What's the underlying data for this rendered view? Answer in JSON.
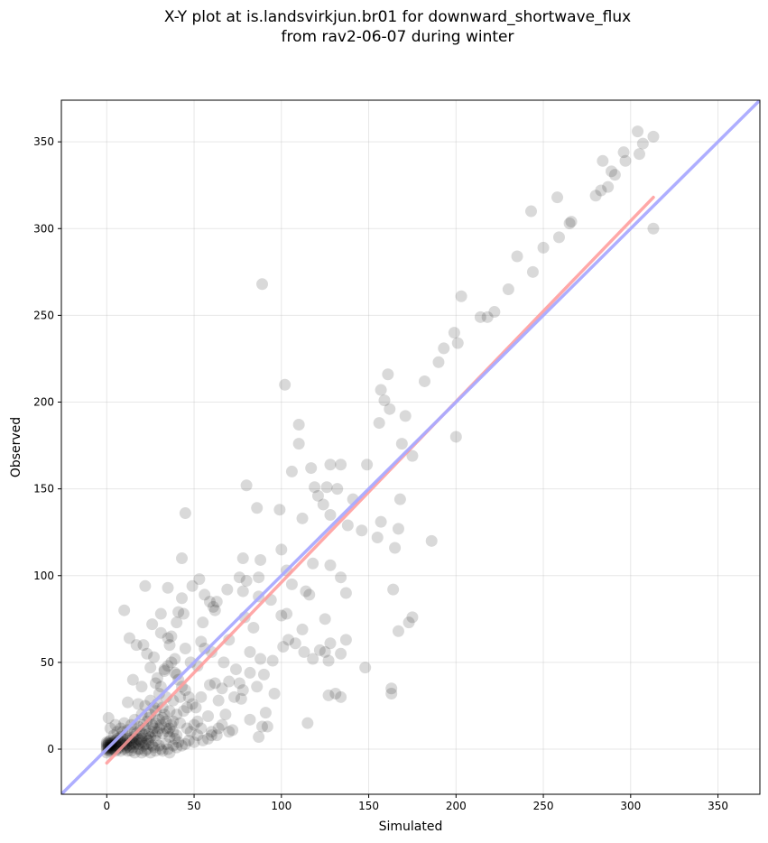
{
  "title": {
    "line1": "X-Y plot at is.landsvirkjun.br01 for downward_shortwave_flux",
    "line2": "from rav2-06-07 during winter"
  },
  "chart_data": {
    "type": "scatter",
    "xlabel": "Simulated",
    "ylabel": "Observed",
    "xlim": [
      -26,
      374
    ],
    "ylim": [
      -26,
      374
    ],
    "xticks": [
      0,
      50,
      100,
      150,
      200,
      250,
      300,
      350
    ],
    "yticks": [
      0,
      50,
      100,
      150,
      200,
      250,
      300,
      350
    ],
    "grid": true,
    "colors": {
      "points": "#000000",
      "identity_line": "#aaaaff",
      "fit_line": "#ff9999"
    },
    "identity_line": {
      "x": [
        -26,
        374
      ],
      "y": [
        -26,
        374
      ]
    },
    "fit_line": {
      "x": [
        0,
        313
      ],
      "y": [
        -8,
        318
      ]
    },
    "points": [
      [
        304,
        356
      ],
      [
        313,
        353
      ],
      [
        307,
        349
      ],
      [
        296,
        344
      ],
      [
        305,
        343
      ],
      [
        284,
        339
      ],
      [
        297,
        339
      ],
      [
        289,
        333
      ],
      [
        291,
        331
      ],
      [
        287,
        324
      ],
      [
        283,
        322
      ],
      [
        280,
        319
      ],
      [
        258,
        318
      ],
      [
        243,
        310
      ],
      [
        266,
        304
      ],
      [
        265,
        303
      ],
      [
        313,
        300
      ],
      [
        259,
        295
      ],
      [
        250,
        289
      ],
      [
        235,
        284
      ],
      [
        244,
        275
      ],
      [
        230,
        265
      ],
      [
        89,
        268
      ],
      [
        203,
        261
      ],
      [
        222,
        252
      ],
      [
        218,
        249
      ],
      [
        214,
        249
      ],
      [
        199,
        240
      ],
      [
        201,
        234
      ],
      [
        193,
        231
      ],
      [
        190,
        223
      ],
      [
        182,
        212
      ],
      [
        102,
        210
      ],
      [
        161,
        216
      ],
      [
        157,
        207
      ],
      [
        159,
        201
      ],
      [
        162,
        196
      ],
      [
        171,
        192
      ],
      [
        156,
        188
      ],
      [
        110,
        187
      ],
      [
        200,
        180
      ],
      [
        110,
        176
      ],
      [
        169,
        176
      ],
      [
        175,
        169
      ],
      [
        117,
        162
      ],
      [
        106,
        160
      ],
      [
        128,
        164
      ],
      [
        134,
        164
      ],
      [
        149,
        164
      ],
      [
        80,
        152
      ],
      [
        119,
        151
      ],
      [
        126,
        151
      ],
      [
        132,
        150
      ],
      [
        121,
        146
      ],
      [
        141,
        144
      ],
      [
        168,
        144
      ],
      [
        124,
        141
      ],
      [
        99,
        138
      ],
      [
        86,
        139
      ],
      [
        112,
        133
      ],
      [
        128,
        135
      ],
      [
        138,
        129
      ],
      [
        157,
        131
      ],
      [
        45,
        136
      ],
      [
        155,
        122
      ],
      [
        167,
        127
      ],
      [
        146,
        126
      ],
      [
        186,
        120
      ],
      [
        165,
        116
      ],
      [
        100,
        115
      ],
      [
        78,
        110
      ],
      [
        88,
        109
      ],
      [
        43,
        110
      ],
      [
        118,
        107
      ],
      [
        128,
        106
      ],
      [
        103,
        103
      ],
      [
        87,
        99
      ],
      [
        76,
        99
      ],
      [
        134,
        99
      ],
      [
        53,
        98
      ],
      [
        80,
        97
      ],
      [
        49,
        94
      ],
      [
        22,
        94
      ],
      [
        35,
        93
      ],
      [
        106,
        95
      ],
      [
        69,
        92
      ],
      [
        114,
        91
      ],
      [
        78,
        91
      ],
      [
        116,
        89
      ],
      [
        137,
        90
      ],
      [
        56,
        89
      ],
      [
        87,
        88
      ],
      [
        59,
        85
      ],
      [
        94,
        86
      ],
      [
        63,
        85
      ],
      [
        43,
        87
      ],
      [
        61,
        82
      ],
      [
        41,
        79
      ],
      [
        62,
        80
      ],
      [
        10,
        80
      ],
      [
        31,
        78
      ],
      [
        103,
        78
      ],
      [
        100,
        77
      ],
      [
        44,
        78
      ],
      [
        79,
        76
      ],
      [
        164,
        92
      ],
      [
        175,
        76
      ],
      [
        173,
        73
      ],
      [
        125,
        75
      ],
      [
        167,
        68
      ],
      [
        112,
        69
      ],
      [
        84,
        70
      ],
      [
        55,
        73
      ],
      [
        40,
        73
      ],
      [
        26,
        72
      ],
      [
        31,
        67
      ],
      [
        37,
        65
      ],
      [
        35,
        64
      ],
      [
        13,
        64
      ],
      [
        54,
        62
      ],
      [
        70,
        63
      ],
      [
        104,
        63
      ],
      [
        108,
        61
      ],
      [
        128,
        61
      ],
      [
        137,
        63
      ],
      [
        101,
        59
      ],
      [
        21,
        60
      ],
      [
        17,
        60
      ],
      [
        36,
        60
      ],
      [
        45,
        58
      ],
      [
        56,
        58
      ],
      [
        60,
        56
      ],
      [
        82,
        56
      ],
      [
        113,
        56
      ],
      [
        122,
        57
      ],
      [
        125,
        56
      ],
      [
        134,
        55
      ],
      [
        88,
        52
      ],
      [
        95,
        51
      ],
      [
        127,
        51
      ],
      [
        23,
        55
      ],
      [
        27,
        53
      ],
      [
        39,
        52
      ],
      [
        48,
        50
      ],
      [
        67,
        50
      ],
      [
        118,
        52
      ],
      [
        148,
        47
      ],
      [
        52,
        48
      ],
      [
        25,
        47
      ],
      [
        33,
        45
      ],
      [
        74,
        46
      ],
      [
        82,
        44
      ],
      [
        90,
        43
      ],
      [
        40,
        43
      ],
      [
        29,
        41
      ],
      [
        15,
        40
      ],
      [
        20,
        36
      ],
      [
        28,
        38
      ],
      [
        59,
        37
      ],
      [
        62,
        38
      ],
      [
        70,
        39
      ],
      [
        76,
        38
      ],
      [
        66,
        35
      ],
      [
        78,
        34
      ],
      [
        86,
        36
      ],
      [
        96,
        32
      ],
      [
        127,
        31
      ],
      [
        131,
        32
      ],
      [
        134,
        30
      ],
      [
        163,
        32
      ],
      [
        163,
        35
      ],
      [
        115,
        15
      ],
      [
        73,
        30
      ],
      [
        77,
        29
      ],
      [
        54,
        30
      ],
      [
        46,
        24
      ],
      [
        64,
        28
      ],
      [
        91,
        21
      ],
      [
        68,
        20
      ],
      [
        58,
        19
      ],
      [
        82,
        17
      ],
      [
        89,
        13
      ],
      [
        92,
        13
      ],
      [
        72,
        11
      ],
      [
        87,
        7
      ],
      [
        60,
        8
      ],
      [
        63,
        8
      ],
      [
        54,
        12
      ],
      [
        30,
        32
      ],
      [
        34,
        30
      ],
      [
        38,
        28
      ],
      [
        42,
        30
      ],
      [
        25,
        28
      ],
      [
        18,
        26
      ],
      [
        22,
        25
      ],
      [
        12,
        27
      ],
      [
        28,
        22
      ],
      [
        32,
        24
      ],
      [
        36,
        22
      ],
      [
        40,
        20
      ],
      [
        44,
        22
      ],
      [
        20,
        20
      ],
      [
        24,
        18
      ],
      [
        16,
        17
      ],
      [
        30,
        17
      ],
      [
        34,
        16
      ],
      [
        38,
        16
      ],
      [
        42,
        15
      ],
      [
        10,
        15
      ],
      [
        14,
        14
      ],
      [
        18,
        13
      ],
      [
        22,
        12
      ],
      [
        26,
        14
      ],
      [
        8,
        12
      ],
      [
        12,
        11
      ],
      [
        6,
        10
      ],
      [
        16,
        10
      ],
      [
        20,
        9
      ],
      [
        24,
        9
      ],
      [
        28,
        8
      ],
      [
        32,
        9
      ],
      [
        36,
        7
      ],
      [
        40,
        8
      ],
      [
        4,
        8
      ],
      [
        8,
        7
      ],
      [
        12,
        6
      ],
      [
        16,
        6
      ],
      [
        20,
        6
      ],
      [
        24,
        5
      ],
      [
        28,
        5
      ],
      [
        2,
        5
      ],
      [
        6,
        4
      ],
      [
        10,
        4
      ],
      [
        14,
        3
      ],
      [
        18,
        3
      ],
      [
        22,
        3
      ],
      [
        26,
        2
      ],
      [
        30,
        2
      ],
      [
        34,
        3
      ],
      [
        38,
        2
      ],
      [
        3,
        2
      ],
      [
        7,
        1
      ],
      [
        11,
        1
      ],
      [
        15,
        1
      ],
      [
        19,
        0
      ],
      [
        23,
        0
      ],
      [
        27,
        1
      ],
      [
        31,
        0
      ],
      [
        35,
        0
      ],
      [
        40,
        1
      ],
      [
        45,
        3
      ],
      [
        1,
        18
      ],
      [
        2,
        12
      ],
      [
        5,
        14
      ],
      [
        9,
        10
      ],
      [
        0,
        2
      ],
      [
        1,
        0
      ],
      [
        2,
        -1
      ],
      [
        3,
        1
      ],
      [
        0,
        -2
      ],
      [
        1,
        -1
      ],
      [
        2,
        1
      ],
      [
        4,
        0
      ],
      [
        5,
        -1
      ],
      [
        6,
        0
      ],
      [
        8,
        -1
      ],
      [
        10,
        0
      ],
      [
        12,
        -1
      ],
      [
        14,
        -1
      ],
      [
        16,
        -2
      ],
      [
        18,
        0
      ],
      [
        20,
        -2
      ],
      [
        22,
        -1
      ],
      [
        25,
        -2
      ],
      [
        28,
        -1
      ],
      [
        32,
        -1
      ],
      [
        36,
        -2
      ],
      [
        3,
        3
      ],
      [
        5,
        5
      ],
      [
        7,
        3
      ],
      [
        9,
        6
      ],
      [
        11,
        8
      ],
      [
        13,
        5
      ],
      [
        15,
        7
      ],
      [
        17,
        9
      ],
      [
        19,
        11
      ],
      [
        21,
        14
      ],
      [
        23,
        16
      ],
      [
        25,
        20
      ],
      [
        27,
        24
      ],
      [
        29,
        26
      ],
      [
        31,
        36
      ],
      [
        33,
        46
      ],
      [
        35,
        48
      ],
      [
        37,
        50
      ],
      [
        39,
        44
      ],
      [
        41,
        40
      ],
      [
        43,
        36
      ],
      [
        45,
        34
      ],
      [
        47,
        30
      ],
      [
        49,
        26
      ],
      [
        51,
        24
      ],
      [
        0,
        0
      ],
      [
        0,
        1
      ],
      [
        1,
        1
      ],
      [
        1,
        2
      ],
      [
        2,
        2
      ],
      [
        0,
        3
      ],
      [
        1,
        3
      ],
      [
        2,
        0
      ],
      [
        3,
        0
      ],
      [
        0,
        4
      ],
      [
        1,
        4
      ],
      [
        2,
        3
      ],
      [
        3,
        4
      ],
      [
        4,
        2
      ],
      [
        4,
        4
      ],
      [
        5,
        2
      ],
      [
        5,
        3
      ],
      [
        6,
        2
      ],
      [
        6,
        6
      ],
      [
        7,
        5
      ],
      [
        8,
        4
      ],
      [
        9,
        3
      ],
      [
        10,
        2
      ],
      [
        11,
        3
      ],
      [
        12,
        2
      ],
      [
        13,
        1
      ],
      [
        14,
        5
      ],
      [
        15,
        4
      ],
      [
        16,
        3
      ],
      [
        17,
        4
      ],
      [
        18,
        6
      ],
      [
        19,
        5
      ],
      [
        20,
        4
      ],
      [
        21,
        2
      ],
      [
        22,
        8
      ],
      [
        23,
        6
      ],
      [
        24,
        3
      ],
      [
        25,
        7
      ],
      [
        26,
        10
      ],
      [
        27,
        12
      ],
      [
        28,
        15
      ],
      [
        29,
        10
      ],
      [
        30,
        12
      ],
      [
        31,
        14
      ],
      [
        32,
        18
      ],
      [
        33,
        20
      ],
      [
        34,
        12
      ],
      [
        35,
        10
      ],
      [
        36,
        12
      ],
      [
        37,
        14
      ],
      [
        38,
        10
      ],
      [
        39,
        6
      ],
      [
        41,
        4
      ],
      [
        43,
        2
      ],
      [
        47,
        5
      ],
      [
        50,
        4
      ],
      [
        52,
        8
      ],
      [
        55,
        5
      ],
      [
        58,
        6
      ],
      [
        60,
        10
      ],
      [
        64,
        12
      ],
      [
        66,
        14
      ],
      [
        70,
        10
      ],
      [
        48,
        10
      ],
      [
        50,
        14
      ],
      [
        52,
        16
      ],
      [
        46,
        12
      ]
    ]
  }
}
